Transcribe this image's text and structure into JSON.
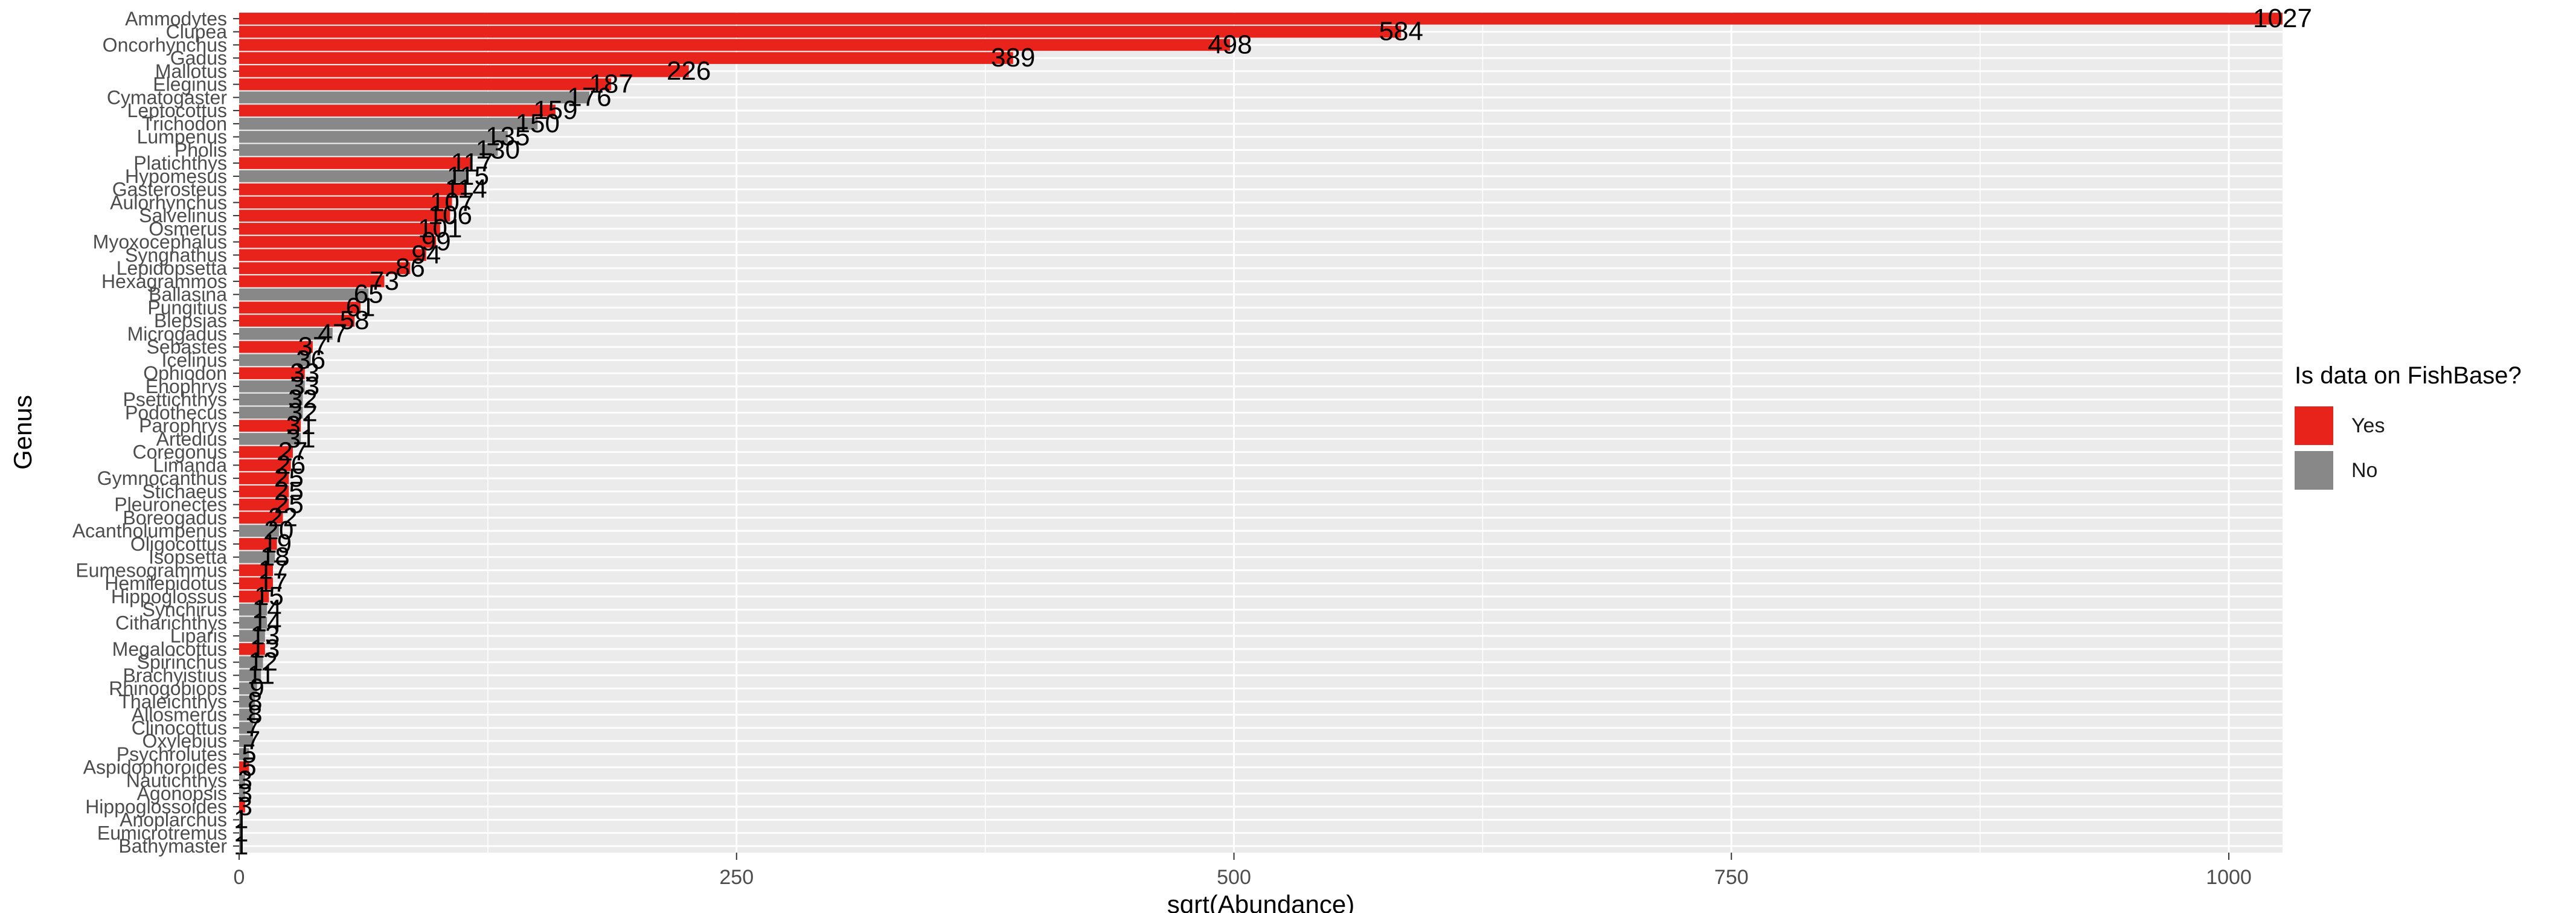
{
  "chart_data": {
    "type": "bar",
    "orientation": "horizontal",
    "xlabel": "sqrt(Abundance)",
    "ylabel": "Genus",
    "xlim": [
      0,
      1027
    ],
    "xticks": [
      0,
      250,
      500,
      750,
      1000
    ],
    "grid": true,
    "legend": {
      "title": "Is data on FishBase?",
      "placement": "right",
      "entries": [
        {
          "label": "Yes",
          "color": "#e8231b"
        },
        {
          "label": "No",
          "color": "#888888"
        }
      ]
    },
    "bars": [
      {
        "genus": "Ammodytes",
        "value": 1027,
        "fishbase": "Yes"
      },
      {
        "genus": "Clupea",
        "value": 584,
        "fishbase": "Yes"
      },
      {
        "genus": "Oncorhynchus",
        "value": 498,
        "fishbase": "Yes"
      },
      {
        "genus": "Gadus",
        "value": 389,
        "fishbase": "Yes"
      },
      {
        "genus": "Mallotus",
        "value": 226,
        "fishbase": "Yes"
      },
      {
        "genus": "Eleginus",
        "value": 187,
        "fishbase": "Yes"
      },
      {
        "genus": "Cymatogaster",
        "value": 176,
        "fishbase": "No"
      },
      {
        "genus": "Leptocottus",
        "value": 159,
        "fishbase": "Yes"
      },
      {
        "genus": "Trichodon",
        "value": 150,
        "fishbase": "No"
      },
      {
        "genus": "Lumpenus",
        "value": 135,
        "fishbase": "No"
      },
      {
        "genus": "Pholis",
        "value": 130,
        "fishbase": "No"
      },
      {
        "genus": "Platichthys",
        "value": 117,
        "fishbase": "Yes"
      },
      {
        "genus": "Hypomesus",
        "value": 115,
        "fishbase": "No"
      },
      {
        "genus": "Gasterosteus",
        "value": 114,
        "fishbase": "Yes"
      },
      {
        "genus": "Aulorhynchus",
        "value": 107,
        "fishbase": "Yes"
      },
      {
        "genus": "Salvelinus",
        "value": 106,
        "fishbase": "Yes"
      },
      {
        "genus": "Osmerus",
        "value": 101,
        "fishbase": "Yes"
      },
      {
        "genus": "Myoxocephalus",
        "value": 99,
        "fishbase": "Yes"
      },
      {
        "genus": "Syngnathus",
        "value": 94,
        "fishbase": "Yes"
      },
      {
        "genus": "Lepidopsetta",
        "value": 86,
        "fishbase": "Yes"
      },
      {
        "genus": "Hexagrammos",
        "value": 73,
        "fishbase": "Yes"
      },
      {
        "genus": "Ballasina",
        "value": 65,
        "fishbase": "No"
      },
      {
        "genus": "Pungitius",
        "value": 61,
        "fishbase": "Yes"
      },
      {
        "genus": "Blepsias",
        "value": 58,
        "fishbase": "Yes"
      },
      {
        "genus": "Microgadus",
        "value": 47,
        "fishbase": "No"
      },
      {
        "genus": "Sebastes",
        "value": 37,
        "fishbase": "Yes"
      },
      {
        "genus": "Icelinus",
        "value": 36,
        "fishbase": "No"
      },
      {
        "genus": "Ophiodon",
        "value": 33,
        "fishbase": "Yes"
      },
      {
        "genus": "Enophrys",
        "value": 33,
        "fishbase": "No"
      },
      {
        "genus": "Psettichthys",
        "value": 32,
        "fishbase": "No"
      },
      {
        "genus": "Podothecus",
        "value": 32,
        "fishbase": "No"
      },
      {
        "genus": "Parophrys",
        "value": 31,
        "fishbase": "Yes"
      },
      {
        "genus": "Artedius",
        "value": 31,
        "fishbase": "No"
      },
      {
        "genus": "Coregonus",
        "value": 27,
        "fishbase": "Yes"
      },
      {
        "genus": "Limanda",
        "value": 26,
        "fishbase": "Yes"
      },
      {
        "genus": "Gymnocanthus",
        "value": 25,
        "fishbase": "Yes"
      },
      {
        "genus": "Stichaeus",
        "value": 25,
        "fishbase": "Yes"
      },
      {
        "genus": "Pleuronectes",
        "value": 25,
        "fishbase": "Yes"
      },
      {
        "genus": "Boreogadus",
        "value": 22,
        "fishbase": "Yes"
      },
      {
        "genus": "Acantholumpenus",
        "value": 20,
        "fishbase": "No"
      },
      {
        "genus": "Oligocottus",
        "value": 19,
        "fishbase": "Yes"
      },
      {
        "genus": "Isopsetta",
        "value": 18,
        "fishbase": "No"
      },
      {
        "genus": "Eumesogrammus",
        "value": 17,
        "fishbase": "Yes"
      },
      {
        "genus": "Hemilepidotus",
        "value": 17,
        "fishbase": "Yes"
      },
      {
        "genus": "Hippoglossus",
        "value": 15,
        "fishbase": "Yes"
      },
      {
        "genus": "Synchirus",
        "value": 14,
        "fishbase": "No"
      },
      {
        "genus": "Citharichthys",
        "value": 14,
        "fishbase": "No"
      },
      {
        "genus": "Liparis",
        "value": 13,
        "fishbase": "No"
      },
      {
        "genus": "Megalocottus",
        "value": 13,
        "fishbase": "Yes"
      },
      {
        "genus": "Spirinchus",
        "value": 12,
        "fishbase": "No"
      },
      {
        "genus": "Brachyistius",
        "value": 11,
        "fishbase": "No"
      },
      {
        "genus": "Rhinogobiops",
        "value": 9,
        "fishbase": "No"
      },
      {
        "genus": "Thaleichthys",
        "value": 8,
        "fishbase": "No"
      },
      {
        "genus": "Allosmerus",
        "value": 8,
        "fishbase": "No"
      },
      {
        "genus": "Clinocottus",
        "value": 7,
        "fishbase": "No"
      },
      {
        "genus": "Oxylebius",
        "value": 7,
        "fishbase": "No"
      },
      {
        "genus": "Psychrolutes",
        "value": 5,
        "fishbase": "No"
      },
      {
        "genus": "Aspidophoroides",
        "value": 5,
        "fishbase": "Yes"
      },
      {
        "genus": "Nautichthys",
        "value": 3,
        "fishbase": "No"
      },
      {
        "genus": "Agonopsis",
        "value": 3,
        "fishbase": "No"
      },
      {
        "genus": "Hippoglossoides",
        "value": 3,
        "fishbase": "Yes"
      },
      {
        "genus": "Anoplarchus",
        "value": 1,
        "fishbase": "No"
      },
      {
        "genus": "Eumicrotremus",
        "value": 1,
        "fishbase": "No"
      },
      {
        "genus": "Bathymaster",
        "value": 1,
        "fishbase": "No"
      }
    ]
  }
}
